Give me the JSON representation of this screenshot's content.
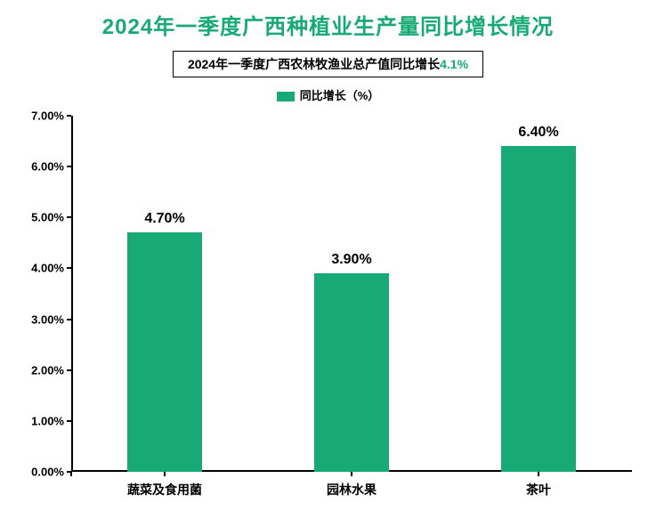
{
  "title": {
    "text": "2024年一季度广西种植业生产量同比增长情况",
    "color": "#17aa76",
    "fontsize": 24
  },
  "subtitle": {
    "prefix": "2024年一季度广西农林牧渔业总产值同比增长",
    "highlight": "4.1%",
    "highlight_color": "#17aa76",
    "fontsize": 14,
    "text_color": "#000000",
    "border_color": "#000000"
  },
  "legend": {
    "label": "同比增长（%）",
    "marker_color": "#17aa76",
    "fontsize": 13,
    "text_color": "#000000"
  },
  "chart": {
    "type": "bar",
    "categories": [
      "蔬菜及食用菌",
      "园林水果",
      "茶叶"
    ],
    "values": [
      4.7,
      3.9,
      6.4
    ],
    "value_labels": [
      "4.70%",
      "3.90%",
      "6.40%"
    ],
    "bar_color": "#17aa76",
    "bar_width_ratio": 0.4,
    "ylim": [
      0,
      7
    ],
    "ytick_step": 1,
    "ytick_labels": [
      "0.00%",
      "1.00%",
      "2.00%",
      "3.00%",
      "4.00%",
      "5.00%",
      "6.00%",
      "7.00%"
    ],
    "axis_color": "#000000",
    "tick_fontsize": 13,
    "value_label_fontsize": 16,
    "x_label_fontsize": 14,
    "background_color": "#ffffff"
  }
}
